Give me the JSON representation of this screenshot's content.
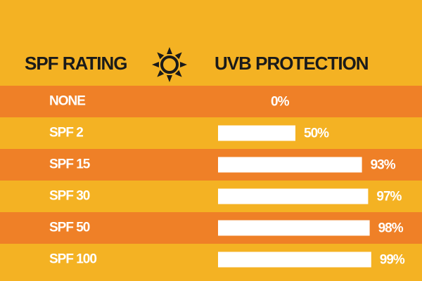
{
  "chart_data": {
    "type": "bar",
    "category_header": "SPF RATING",
    "value_header": "UVB PROTECTION",
    "categories": [
      "NONE",
      "SPF 2",
      "SPF 15",
      "SPF 30",
      "SPF 50",
      "SPF 100"
    ],
    "values": [
      0,
      50,
      93,
      97,
      98,
      99
    ],
    "value_labels": [
      "0%",
      "50%",
      "93%",
      "97%",
      "98%",
      "99%"
    ],
    "xlim": [
      0,
      100
    ],
    "color": "#ffffff"
  }
}
